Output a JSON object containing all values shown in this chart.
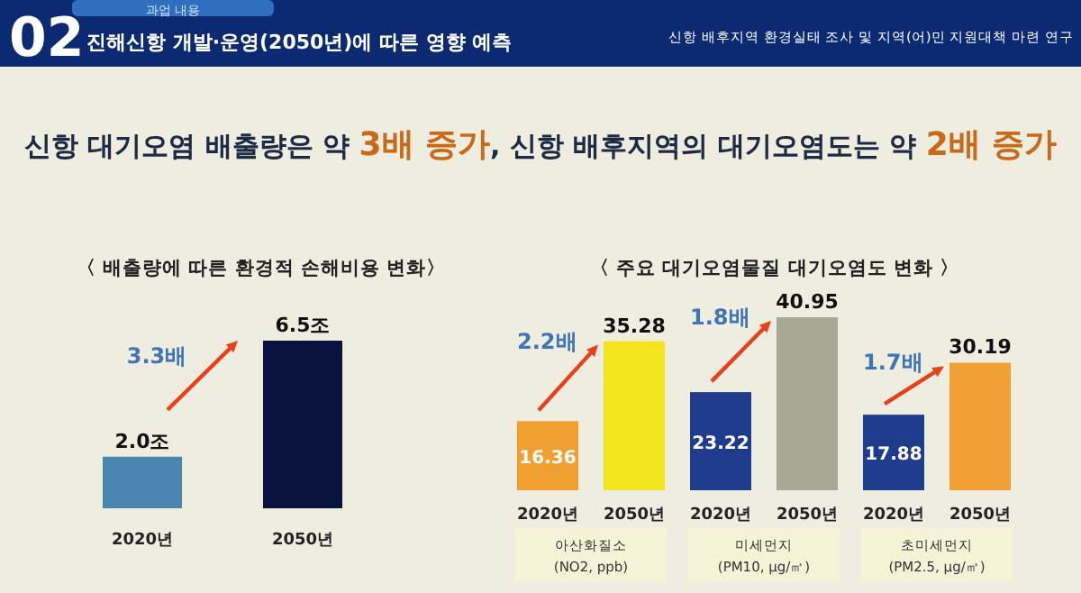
{
  "chart_data": [
    {
      "type": "bar",
      "title": "〈 배출량에 따른 환경적 손해비용 변화〉",
      "annotations": [
        "02",
        "과업 내용",
        "진해신항 개발·운영(2050년)에 따른 영향 예측",
        "신항 배후지역 환경실태 조사 및 지역(어)민 지원대책 마련 연구",
        "신항 대기오염 배출량은 약 **3배 증가**, 신항 배후지역의 대기오염도는 약 **2배 증가**",
        "3.3배"
      ],
      "categories": [
        "2020년",
        "2050년"
      ],
      "values": [
        2.0,
        6.5
      ],
      "colors": [
        "#4a86b0",
        "#0a1240"
      ],
      "value_labels": [
        "2.0조",
        "6.5조"
      ]
    },
    {
      "type": "bar",
      "title": "〈 주요 대기오염물질 대기오염도 변화 〉",
      "annotations": [
        "2.2배",
        "1.8배",
        "1.7배"
      ],
      "categories": [
        "아산화질소\n(NO2, ppb)",
        "미세먼지\n(PM10, μg/㎥)",
        "초미세먼지\n(PM2.5, μg/㎥)"
      ],
      "series": [
        {
          "name": "2020년",
          "colors": [
            "#f0a030",
            "#1f3c8c",
            "#1f3c8c"
          ],
          "values": [
            16.36,
            23.22,
            17.88
          ]
        },
        {
          "name": "2050년",
          "colors": [
            "#f2e51e",
            "#a8a896",
            "#f0a035"
          ],
          "values": [
            35.28,
            40.95,
            30.19
          ]
        }
      ],
      "data_labels": true
    }
  ]
}
